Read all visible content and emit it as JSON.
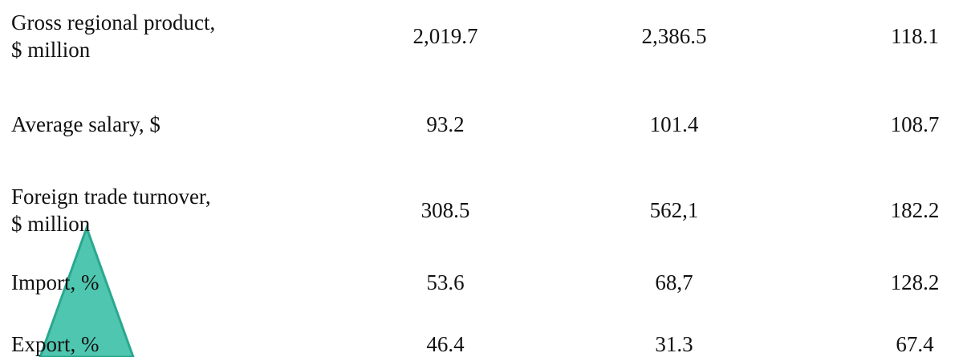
{
  "table": {
    "rows": [
      {
        "label": [
          "Gross regional product,",
          "$ million"
        ],
        "values": [
          "2,019.7",
          "2,386.5",
          "118.1"
        ]
      },
      {
        "label": [
          "Average salary, $"
        ],
        "values": [
          "93.2",
          "101.4",
          "108.7"
        ]
      },
      {
        "label": [
          "Foreign trade turnover,",
          "$ million"
        ],
        "values": [
          "308.5",
          "562,1",
          "182.2"
        ]
      },
      {
        "label": [
          "Import, %"
        ],
        "values": [
          "53.6",
          "68,7",
          "128.2"
        ]
      },
      {
        "label": [
          "Export, %"
        ],
        "values": [
          "46.4",
          "31.3",
          "67.4"
        ]
      }
    ]
  }
}
